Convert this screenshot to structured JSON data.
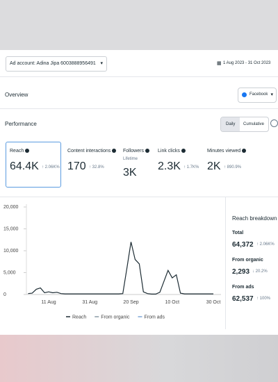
{
  "header": {
    "ad_account": "Ad account: Adina Jipa 6003888956491",
    "date_range": "1 Aug 2023 - 31 Oct 2023"
  },
  "overview": {
    "title": "Overview",
    "platform": "Facebook"
  },
  "performance": {
    "title": "Performance",
    "toggle": [
      "Daily",
      "Cumulative"
    ],
    "metrics": [
      {
        "label": "Reach",
        "value": "64.4K",
        "change": "↑ 2.06K%"
      },
      {
        "label": "Content interactions",
        "value": "170",
        "change": "↑ 32.8%"
      },
      {
        "label": "Followers",
        "sublabel": "Lifetime",
        "value": "3K"
      },
      {
        "label": "Link clicks",
        "value": "2.3K",
        "change": "↑ 1.7K%"
      },
      {
        "label": "Minutes viewed",
        "value": "2K",
        "change": "↑ 890.9%"
      }
    ]
  },
  "chart_data": {
    "type": "line",
    "categories": [
      null,
      null,
      null,
      null,
      null,
      "11 Aug",
      null,
      null,
      null,
      null,
      null,
      null,
      null,
      null,
      null,
      "31 Aug",
      null,
      null,
      null,
      null,
      null,
      null,
      null,
      null,
      null,
      "20 Sep",
      null,
      null,
      null,
      null,
      null,
      null,
      null,
      null,
      null,
      "10 Oct",
      null,
      null,
      null,
      null,
      null,
      null,
      null,
      null,
      null,
      "30 Oct"
    ],
    "series": [
      {
        "name": "Reach",
        "color": "#1c2b33",
        "values": [
          200,
          300,
          1200,
          1500,
          400,
          600,
          400,
          500,
          200,
          150,
          150,
          150,
          150,
          150,
          150,
          150,
          150,
          150,
          150,
          150,
          150,
          150,
          150,
          200,
          6000,
          12000,
          8000,
          7000,
          600,
          200,
          100,
          100,
          500,
          3000,
          5500,
          3800,
          4500,
          300,
          150,
          150,
          150,
          150,
          150,
          150,
          150,
          150
        ]
      }
    ],
    "legend": [
      {
        "name": "Reach",
        "color": "#1c2b33"
      },
      {
        "name": "From organic",
        "color": "#8a9aa6"
      },
      {
        "name": "From ads",
        "color": "#7fa7d9"
      }
    ],
    "ylim": [
      0,
      20000
    ],
    "yticks": [
      {
        "value": 0,
        "label": "0"
      },
      {
        "value": 5000,
        "label": "5,000"
      },
      {
        "value": 10000,
        "label": "10,000"
      },
      {
        "value": 15000,
        "label": "15,000"
      },
      {
        "value": 20000,
        "label": "20,000"
      }
    ],
    "grid": false
  },
  "breakdown": {
    "title": "Reach breakdown",
    "items": [
      {
        "label": "Total",
        "value": "64,372",
        "change": "↑ 2.06K%"
      },
      {
        "label": "From organic",
        "value": "2,293",
        "change": "↓ 20.2%"
      },
      {
        "label": "From ads",
        "value": "62,537",
        "change": "↑ 100%"
      }
    ]
  }
}
